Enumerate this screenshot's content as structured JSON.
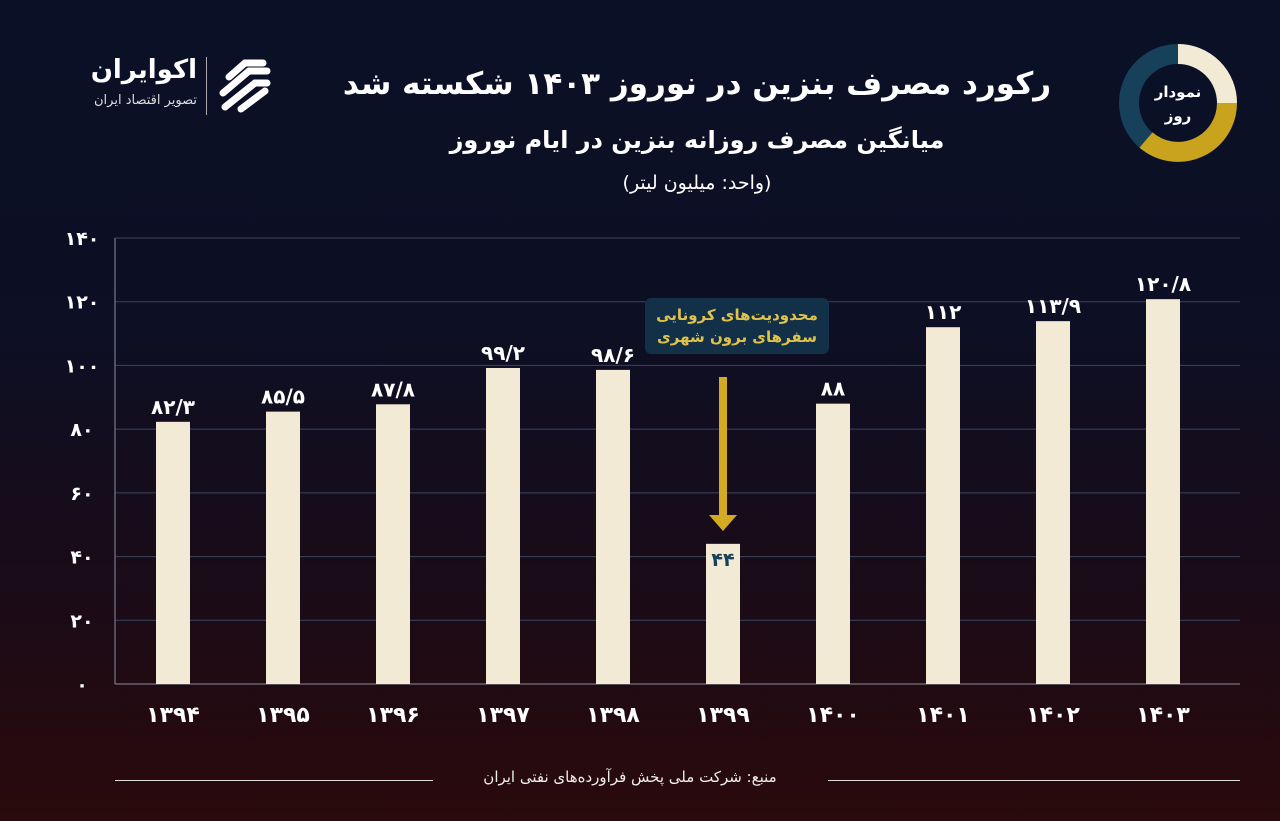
{
  "header": {
    "title": "رکورد مصرف بنزین در نوروز ۱۴۰۳ شکسته شد",
    "subtitle": "میانگین مصرف روزانه بنزین در ایام نوروز",
    "unit": "(واحد: میلیون لیتر)"
  },
  "logo": {
    "name": "اکوایران",
    "tagline": "تصویر اقتصاد ایران"
  },
  "badge": {
    "text": "نمودار روز"
  },
  "source": "منبع: شرکت ملی پخش فرآورده‌های نفتی ایران",
  "colors": {
    "bar": "#f3ead6",
    "arrow": "#d4aa22",
    "annotation_text": "#e2c34a",
    "annotation_bg": "#123048",
    "low_label": "#17405a",
    "grid": "#3a4560"
  },
  "chart_data": {
    "type": "bar",
    "title": "میانگین مصرف روزانه بنزین در ایام نوروز",
    "ylabel": "(واحد: میلیون لیتر)",
    "categories": [
      "۱۳۹۴",
      "۱۳۹۵",
      "۱۳۹۶",
      "۱۳۹۷",
      "۱۳۹۸",
      "۱۳۹۹",
      "۱۴۰۰",
      "۱۴۰۱",
      "۱۴۰۲",
      "۱۴۰۳"
    ],
    "values": [
      82.3,
      85.5,
      87.8,
      99.2,
      98.6,
      44,
      88,
      112,
      113.9,
      120.8
    ],
    "data_labels": [
      "۸۲/۳",
      "۸۵/۵",
      "۸۷/۸",
      "۹۹/۲",
      "۹۸/۶",
      "۴۴",
      "۸۸",
      "۱۱۲",
      "۱۱۳/۹",
      "۱۲۰/۸"
    ],
    "ylim": [
      0,
      140
    ],
    "yticks": [
      0,
      20,
      40,
      60,
      80,
      100,
      120,
      140
    ],
    "ytick_labels": [
      "۰",
      "۲۰",
      "۴۰",
      "۶۰",
      "۸۰",
      "۱۰۰",
      "۱۲۰",
      "۱۴۰"
    ],
    "grid": true,
    "annotation": {
      "category": "۱۳۹۹",
      "lines": [
        "محدودیت‌های کرونایی",
        "سفرهای برون شهری"
      ]
    }
  }
}
